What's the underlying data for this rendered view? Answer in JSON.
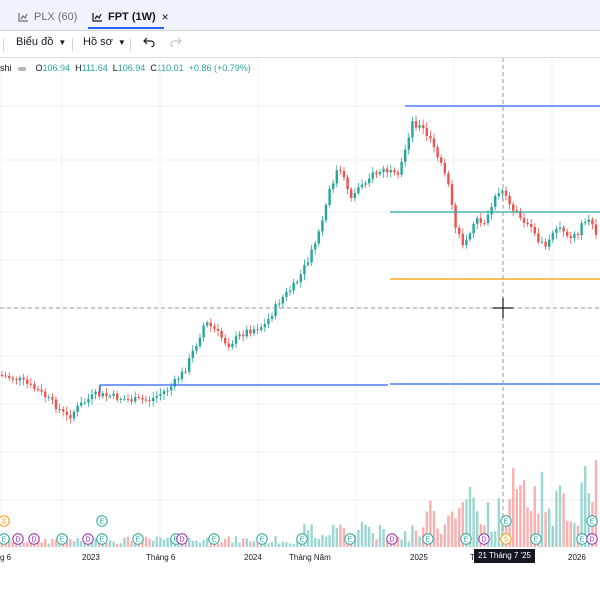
{
  "tabs": [
    {
      "label": "PLX (60)",
      "active": false
    },
    {
      "label": "FPT (1W)",
      "active": true,
      "close": "×"
    }
  ],
  "toolbar": {
    "chart_menu": "Biểu đồ",
    "profile_menu": "Hồ sơ",
    "undo_icon": "undo-icon",
    "redo_icon": "redo-icon"
  },
  "legend": {
    "partial_title": "shi",
    "open_label": "O",
    "open": "106.94",
    "high_label": "H",
    "high": "111.64",
    "low_label": "L",
    "low": "106.94",
    "close_label": "C",
    "close": "110.01",
    "change": "+0.86 (+0.79%)"
  },
  "time_axis": [
    {
      "label": "g 6",
      "x": 0
    },
    {
      "label": "2023",
      "x": 82
    },
    {
      "label": "Tháng 6",
      "x": 146
    },
    {
      "label": "2024",
      "x": 244
    },
    {
      "label": "Tháng Năm",
      "x": 289
    },
    {
      "label": "2025",
      "x": 410
    },
    {
      "label": "T",
      "x": 470
    },
    {
      "label": "2026",
      "x": 568
    }
  ],
  "crosshair_time": "21 Tháng 7 '25",
  "event_markers": [
    "S",
    "D",
    "E"
  ],
  "colors": {
    "up": "#26a69a",
    "down": "#ef5350",
    "hline_blue": "#2962ff",
    "hline_green": "#26a69a",
    "hline_orange": "#ff9800",
    "grid": "#eef0f4"
  }
}
